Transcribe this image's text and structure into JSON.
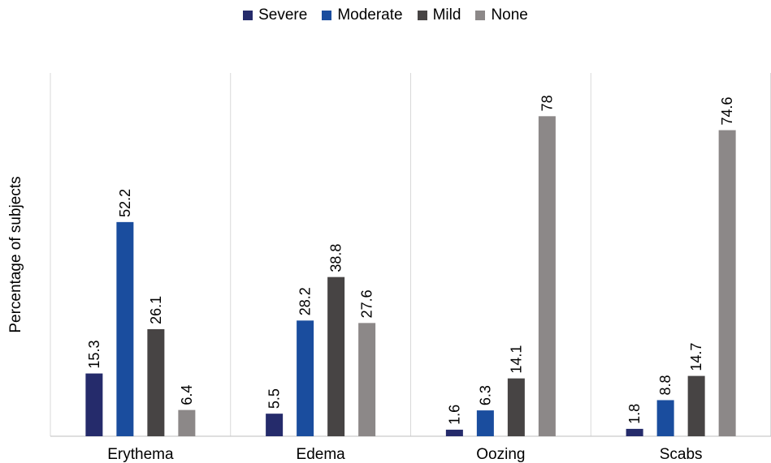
{
  "chart_data": {
    "type": "bar",
    "title": "",
    "xlabel": "",
    "ylabel": "Percentage of subjects",
    "ylim": [
      0,
      85
    ],
    "grid": "vertical category separators",
    "legend_position": "top-center",
    "categories": [
      "Erythema",
      "Edema",
      "Oozing",
      "Scabs"
    ],
    "series": [
      {
        "name": "Severe",
        "color": "#252b6b",
        "values": [
          15.3,
          5.5,
          1.6,
          1.8
        ]
      },
      {
        "name": "Moderate",
        "color": "#1a4d9e",
        "values": [
          52.2,
          28.2,
          6.3,
          8.8
        ]
      },
      {
        "name": "Mild",
        "color": "#474444",
        "values": [
          26.1,
          38.8,
          14.1,
          14.7
        ]
      },
      {
        "name": "None",
        "color": "#8c8888",
        "values": [
          6.4,
          27.6,
          78,
          74.6
        ]
      }
    ]
  }
}
